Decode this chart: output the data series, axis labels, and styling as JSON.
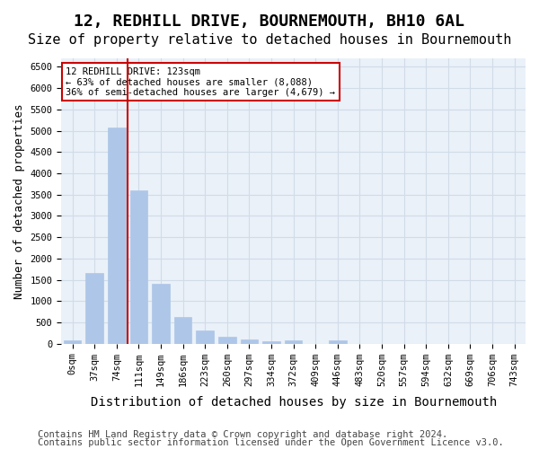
{
  "title": "12, REDHILL DRIVE, BOURNEMOUTH, BH10 6AL",
  "subtitle": "Size of property relative to detached houses in Bournemouth",
  "xlabel": "Distribution of detached houses by size in Bournemouth",
  "ylabel": "Number of detached properties",
  "categories": [
    "0sqm",
    "37sqm",
    "74sqm",
    "111sqm",
    "149sqm",
    "186sqm",
    "223sqm",
    "260sqm",
    "297sqm",
    "334sqm",
    "372sqm",
    "409sqm",
    "446sqm",
    "483sqm",
    "520sqm",
    "557sqm",
    "594sqm",
    "632sqm",
    "669sqm",
    "706sqm",
    "743sqm"
  ],
  "values": [
    75,
    1650,
    5080,
    3600,
    1410,
    620,
    310,
    155,
    90,
    55,
    70,
    0,
    70,
    0,
    0,
    0,
    0,
    0,
    0,
    0,
    0
  ],
  "bar_color": "#aec6e8",
  "bar_edgecolor": "#aec6e8",
  "vline_x": 2.5,
  "vline_color": "#cc0000",
  "ylim": [
    0,
    6700
  ],
  "yticks": [
    0,
    500,
    1000,
    1500,
    2000,
    2500,
    3000,
    3500,
    4000,
    4500,
    5000,
    5500,
    6000,
    6500
  ],
  "grid_color": "#d0dce8",
  "background_color": "#eaf1f8",
  "annotation_text": "12 REDHILL DRIVE: 123sqm\n← 63% of detached houses are smaller (8,088)\n36% of semi-detached houses are larger (4,679) →",
  "annotation_box_edgecolor": "#cc0000",
  "footer_line1": "Contains HM Land Registry data © Crown copyright and database right 2024.",
  "footer_line2": "Contains public sector information licensed under the Open Government Licence v3.0.",
  "title_fontsize": 13,
  "subtitle_fontsize": 11,
  "xlabel_fontsize": 10,
  "ylabel_fontsize": 9,
  "tick_fontsize": 7.5,
  "footer_fontsize": 7.5
}
